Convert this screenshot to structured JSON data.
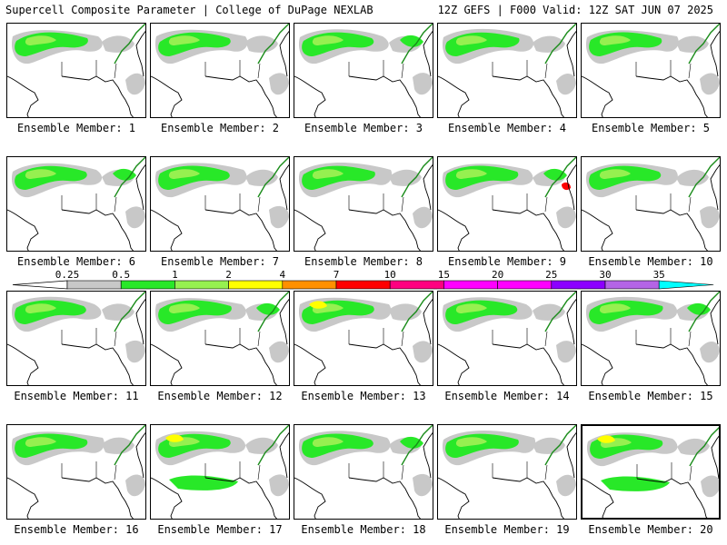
{
  "header": {
    "title": "Supercell Composite Parameter | College of DuPage NEXLAB",
    "run": "12Z GEFS | F000 Valid: 12Z SAT JUN 07 2025"
  },
  "member_label_prefix": "Ensemble Member: ",
  "members": [
    1,
    2,
    3,
    4,
    5,
    6,
    7,
    8,
    9,
    10,
    11,
    12,
    13,
    14,
    15,
    16,
    17,
    18,
    19,
    20
  ],
  "highlighted_member": 20,
  "legend": {
    "ticks": [
      "0.25",
      "0.5",
      "1",
      "2",
      "4",
      "7",
      "10",
      "15",
      "20",
      "25",
      "30",
      "35"
    ],
    "colors": [
      "#c8c8c8",
      "#28e828",
      "#96f050",
      "#ffff00",
      "#ff9000",
      "#ff0000",
      "#ff0080",
      "#ff00ff",
      "#ff00ff",
      "#8c00ff",
      "#b464e6",
      "#00ffff"
    ]
  },
  "fill_colors": {
    "low": "#c8c8c8",
    "mid": "#28e828",
    "high": "#96f050",
    "peak": "#ffff00",
    "extreme": "#ff0000"
  }
}
